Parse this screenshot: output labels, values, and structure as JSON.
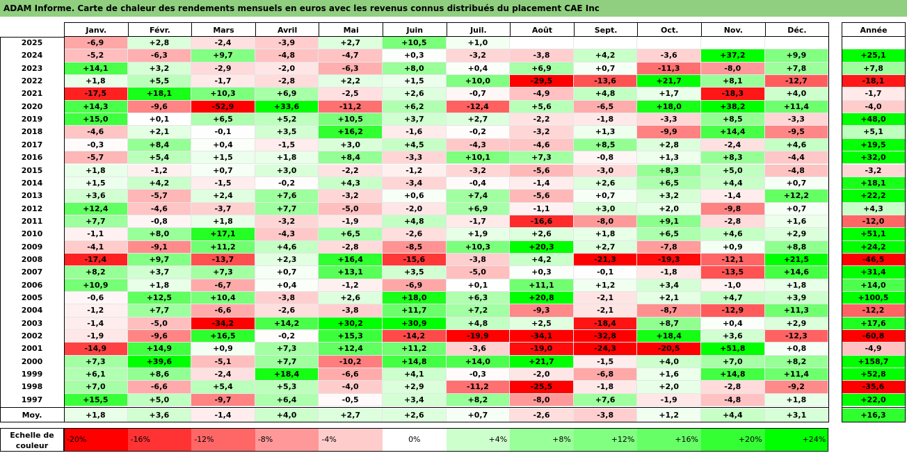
{
  "title": "ADAM Informe. Carte de chaleur des rendements mensuels en euros avec les revenus connus distribués du placement CAE Inc",
  "chart_data": {
    "type": "heatmap",
    "columns": [
      "Janv.",
      "Févr.",
      "Mars",
      "Avril",
      "Mai",
      "Juin",
      "Juil.",
      "Août",
      "Sept.",
      "Oct.",
      "Nov.",
      "Déc."
    ],
    "year_header": "Année",
    "rows": [
      {
        "year": "2025",
        "values": [
          "-6,9",
          "+2,8",
          "-2,4",
          "-3,9",
          "+2,7",
          "+10,5",
          "+1,0",
          "",
          "",
          "",
          "",
          ""
        ],
        "annual": ""
      },
      {
        "year": "2024",
        "values": [
          "-5,2",
          "-6,3",
          "+9,7",
          "-4,8",
          "-4,7",
          "+0,3",
          "-3,2",
          "-3,8",
          "+4,2",
          "-3,6",
          "+37,2",
          "+9,9"
        ],
        "annual": "+25,1"
      },
      {
        "year": "2023",
        "values": [
          "+14,1",
          "+3,2",
          "-2,9",
          "-2,0",
          "-6,3",
          "+8,0",
          "+0,4",
          "+6,9",
          "+0,7",
          "-11,3",
          "-8,0",
          "+7,8"
        ],
        "annual": "+7,8"
      },
      {
        "year": "2022",
        "values": [
          "+1,8",
          "+5,5",
          "-1,7",
          "-2,8",
          "+2,2",
          "+1,5",
          "+10,0",
          "-29,5",
          "-13,6",
          "+21,7",
          "+8,1",
          "-12,7"
        ],
        "annual": "-18,1"
      },
      {
        "year": "2021",
        "values": [
          "-17,5",
          "+18,1",
          "+10,3",
          "+6,9",
          "-2,5",
          "+2,6",
          "-0,7",
          "-4,9",
          "+4,8",
          "+1,7",
          "-18,3",
          "+4,0"
        ],
        "annual": "-1,7"
      },
      {
        "year": "2020",
        "values": [
          "+14,3",
          "-9,6",
          "-52,9",
          "+33,6",
          "-11,2",
          "+6,2",
          "-12,4",
          "+5,6",
          "-6,5",
          "+18,0",
          "+38,2",
          "+11,4"
        ],
        "annual": "-4,0"
      },
      {
        "year": "2019",
        "values": [
          "+15,0",
          "+0,1",
          "+6,5",
          "+5,2",
          "+10,5",
          "+3,7",
          "+2,7",
          "-2,2",
          "-1,8",
          "-3,3",
          "+8,5",
          "-3,3"
        ],
        "annual": "+48,0"
      },
      {
        "year": "2018",
        "values": [
          "-4,6",
          "+2,1",
          "-0,1",
          "+3,5",
          "+16,2",
          "-1,6",
          "-0,2",
          "-3,2",
          "+1,3",
          "-9,9",
          "+14,4",
          "-9,5"
        ],
        "annual": "+5,1"
      },
      {
        "year": "2017",
        "values": [
          "-0,3",
          "+8,4",
          "+0,4",
          "-1,5",
          "+3,0",
          "+4,5",
          "-4,3",
          "-4,6",
          "+8,5",
          "+2,8",
          "-2,4",
          "+4,6"
        ],
        "annual": "+19,5"
      },
      {
        "year": "2016",
        "values": [
          "-5,7",
          "+5,4",
          "+1,5",
          "+1,8",
          "+8,4",
          "-3,3",
          "+10,1",
          "+7,3",
          "-0,8",
          "+1,3",
          "+8,3",
          "-4,4"
        ],
        "annual": "+32,0"
      },
      {
        "year": "2015",
        "values": [
          "+1,8",
          "-1,2",
          "+0,7",
          "+3,0",
          "-2,2",
          "-1,2",
          "-3,2",
          "-5,6",
          "-3,0",
          "+8,3",
          "+5,0",
          "-4,8"
        ],
        "annual": "-3,2"
      },
      {
        "year": "2014",
        "values": [
          "+1,5",
          "+4,2",
          "-1,5",
          "-0,2",
          "+4,3",
          "-3,4",
          "-0,4",
          "-1,4",
          "+2,6",
          "+6,5",
          "+4,4",
          "+0,7"
        ],
        "annual": "+18,1"
      },
      {
        "year": "2013",
        "values": [
          "+3,6",
          "-5,7",
          "+2,4",
          "+7,6",
          "-3,2",
          "+0,6",
          "+7,4",
          "-5,6",
          "+0,7",
          "+3,2",
          "-1,4",
          "+12,2"
        ],
        "annual": "+22,2"
      },
      {
        "year": "2012",
        "values": [
          "+12,4",
          "-4,6",
          "-3,7",
          "+7,7",
          "-5,0",
          "-2,0",
          "+6,9",
          "-1,1",
          "+3,0",
          "+2,0",
          "-9,8",
          "+0,7"
        ],
        "annual": "+4,3"
      },
      {
        "year": "2011",
        "values": [
          "+7,7",
          "-0,8",
          "+1,8",
          "-3,2",
          "-1,9",
          "+4,8",
          "-1,7",
          "-16,6",
          "-8,0",
          "+9,1",
          "-2,8",
          "+1,6"
        ],
        "annual": "-12,0"
      },
      {
        "year": "2010",
        "values": [
          "-1,1",
          "+8,0",
          "+17,1",
          "-4,3",
          "+6,5",
          "-2,6",
          "+1,9",
          "+2,6",
          "+1,8",
          "+6,5",
          "+4,6",
          "+2,9"
        ],
        "annual": "+51,1"
      },
      {
        "year": "2009",
        "values": [
          "-4,1",
          "-9,1",
          "+11,2",
          "+4,6",
          "-2,8",
          "-8,5",
          "+10,3",
          "+20,3",
          "+2,7",
          "-7,8",
          "+0,9",
          "+8,8"
        ],
        "annual": "+24,2"
      },
      {
        "year": "2008",
        "values": [
          "-17,4",
          "+9,7",
          "-13,7",
          "+2,3",
          "+16,4",
          "-15,6",
          "-3,8",
          "+4,2",
          "-21,3",
          "-19,3",
          "-12,1",
          "+21,5"
        ],
        "annual": "-46,5"
      },
      {
        "year": "2007",
        "values": [
          "+8,2",
          "+3,7",
          "+7,3",
          "+0,7",
          "+13,1",
          "+3,5",
          "-5,0",
          "+0,3",
          "-0,1",
          "-1,8",
          "-13,5",
          "+14,6"
        ],
        "annual": "+31,4"
      },
      {
        "year": "2006",
        "values": [
          "+10,9",
          "+1,8",
          "-6,7",
          "+0,4",
          "-1,2",
          "-6,9",
          "+0,1",
          "+11,1",
          "+1,2",
          "+3,4",
          "-1,0",
          "+1,8"
        ],
        "annual": "+14,0"
      },
      {
        "year": "2005",
        "values": [
          "-0,6",
          "+12,5",
          "+10,4",
          "-3,8",
          "+2,6",
          "+18,0",
          "+6,3",
          "+20,8",
          "-2,1",
          "+2,1",
          "+4,7",
          "+3,9"
        ],
        "annual": "+100,5"
      },
      {
        "year": "2004",
        "values": [
          "-1,2",
          "+7,7",
          "-6,6",
          "-2,6",
          "-3,8",
          "+11,7",
          "+7,2",
          "-9,3",
          "-2,1",
          "-8,7",
          "-12,9",
          "+11,3"
        ],
        "annual": "-12,2"
      },
      {
        "year": "2003",
        "values": [
          "-1,4",
          "-5,0",
          "-34,2",
          "+14,2",
          "+30,2",
          "+30,9",
          "+4,8",
          "+2,5",
          "-18,4",
          "+8,7",
          "+0,4",
          "+2,9"
        ],
        "annual": "+17,6"
      },
      {
        "year": "2002",
        "values": [
          "-1,9",
          "-9,6",
          "+16,5",
          "-0,2",
          "+15,3",
          "-14,2",
          "-19,9",
          "-34,1",
          "-32,8",
          "+18,4",
          "+3,6",
          "-12,3"
        ],
        "annual": "-60,8"
      },
      {
        "year": "2001",
        "values": [
          "-14,9",
          "+14,9",
          "+0,9",
          "+7,3",
          "+12,4",
          "+11,2",
          "-3,6",
          "-19,0",
          "-24,3",
          "-20,5",
          "+51,8",
          "+0,8"
        ],
        "annual": "-4,9"
      },
      {
        "year": "2000",
        "values": [
          "+7,3",
          "+39,6",
          "-5,1",
          "+7,7",
          "-10,2",
          "+14,8",
          "+14,0",
          "+21,7",
          "-1,5",
          "+4,0",
          "+7,0",
          "+8,2"
        ],
        "annual": "+158,7"
      },
      {
        "year": "1999",
        "values": [
          "+6,1",
          "+8,6",
          "-2,4",
          "+18,4",
          "-6,6",
          "+4,1",
          "-0,3",
          "-2,0",
          "-6,8",
          "+1,6",
          "+14,8",
          "+11,4"
        ],
        "annual": "+52,8"
      },
      {
        "year": "1998",
        "values": [
          "+7,0",
          "-6,6",
          "+5,4",
          "+5,3",
          "-4,0",
          "+2,9",
          "-11,2",
          "-25,5",
          "-1,8",
          "+2,0",
          "-2,8",
          "-9,2"
        ],
        "annual": "-35,6"
      },
      {
        "year": "1997",
        "values": [
          "+15,5",
          "+5,0",
          "-9,7",
          "+6,4",
          "-0,5",
          "+3,4",
          "+8,2",
          "-8,0",
          "+7,6",
          "-1,9",
          "-4,8",
          "+1,8"
        ],
        "annual": "+22,0"
      }
    ],
    "average": {
      "label": "Moy.",
      "values": [
        "+1,8",
        "+3,6",
        "-1,4",
        "+4,0",
        "+2,7",
        "+2,6",
        "+0,7",
        "-2,6",
        "-3,8",
        "+1,2",
        "+4,4",
        "+3,1"
      ],
      "annual": "+16,3"
    },
    "scale_label": [
      "Echelle de",
      "couleur"
    ],
    "scale": [
      {
        "label": "-20%",
        "color": "#ff0000"
      },
      {
        "label": "-16%",
        "color": "#ff3333"
      },
      {
        "label": "-12%",
        "color": "#ff6666"
      },
      {
        "label": "-8%",
        "color": "#ff9999"
      },
      {
        "label": "-4%",
        "color": "#ffcccc"
      },
      {
        "label": "0%",
        "color": "#ffffff"
      },
      {
        "label": "+4%",
        "color": "#ccffcc"
      },
      {
        "label": "+8%",
        "color": "#99ff99"
      },
      {
        "label": "+12%",
        "color": "#80ff80"
      },
      {
        "label": "+16%",
        "color": "#66ff66"
      },
      {
        "label": "+20%",
        "color": "#33ff33"
      },
      {
        "label": "+24%",
        "color": "#00ff00"
      }
    ]
  }
}
